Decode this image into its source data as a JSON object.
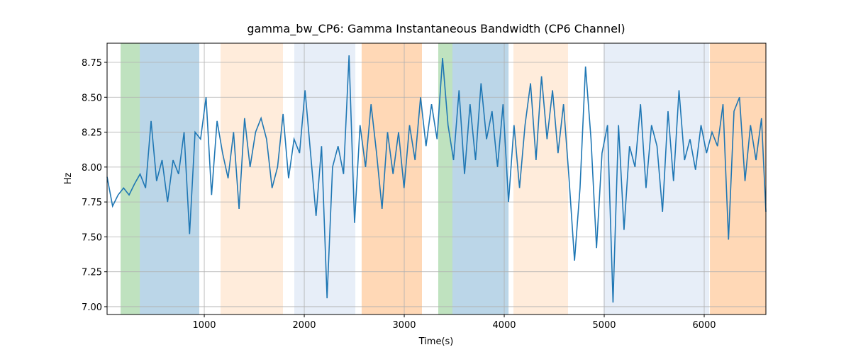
{
  "chart_data": {
    "type": "line",
    "title": "gamma_bw_CP6: Gamma Instantaneous Bandwidth (CP6 Channel)",
    "xlabel": "Time(s)",
    "ylabel": "Hz",
    "xlim": [
      28,
      6617
    ],
    "ylim": [
      6.944,
      8.887
    ],
    "xticks": [
      1000,
      2000,
      3000,
      4000,
      5000,
      6000
    ],
    "yticks": [
      {
        "value": 7,
        "label": "7.00"
      },
      {
        "value": 7.25,
        "label": "7.25"
      },
      {
        "value": 7.5,
        "label": "7.50"
      },
      {
        "value": 7.75,
        "label": "7.75"
      },
      {
        "value": 8,
        "label": "8.00"
      },
      {
        "value": 8.25,
        "label": "8.25"
      },
      {
        "value": 8.5,
        "label": "8.50"
      },
      {
        "value": 8.75,
        "label": "8.75"
      }
    ],
    "grid": true,
    "spans": [
      {
        "start": 163,
        "end": 355,
        "color": "#2ca02c",
        "alpha": 0.3
      },
      {
        "start": 355,
        "end": 950,
        "color": "#1f77b4",
        "alpha": 0.3
      },
      {
        "start": 1163,
        "end": 1787,
        "color": "#ff7f0e",
        "alpha": 0.15
      },
      {
        "start": 1900,
        "end": 2511,
        "color": "#aec7e8",
        "alpha": 0.3
      },
      {
        "start": 2574,
        "end": 3177,
        "color": "#ff7f0e",
        "alpha": 0.3
      },
      {
        "start": 3340,
        "end": 3482,
        "color": "#2ca02c",
        "alpha": 0.3
      },
      {
        "start": 3482,
        "end": 4043,
        "color": "#1f77b4",
        "alpha": 0.3
      },
      {
        "start": 4092,
        "end": 4638,
        "color": "#ff7f0e",
        "alpha": 0.15
      },
      {
        "start": 4993,
        "end": 6050,
        "color": "#aec7e8",
        "alpha": 0.3
      },
      {
        "start": 6057,
        "end": 6617,
        "color": "#ff7f0e",
        "alpha": 0.3
      }
    ],
    "x": [
      28,
      83,
      138,
      193,
      248,
      303,
      358,
      413,
      468,
      523,
      578,
      633,
      688,
      743,
      798,
      853,
      908,
      963,
      1018,
      1073,
      1128,
      1183,
      1238,
      1293,
      1348,
      1403,
      1458,
      1513,
      1568,
      1623,
      1678,
      1733,
      1788,
      1843,
      1898,
      1953,
      2008,
      2063,
      2118,
      2173,
      2228,
      2283,
      2338,
      2393,
      2448,
      2503,
      2558,
      2613,
      2668,
      2723,
      2778,
      2833,
      2888,
      2943,
      2998,
      3053,
      3108,
      3163,
      3218,
      3273,
      3328,
      3383,
      3438,
      3493,
      3548,
      3603,
      3658,
      3713,
      3768,
      3823,
      3878,
      3933,
      3988,
      4043,
      4098,
      4153,
      4208,
      4263,
      4318,
      4373,
      4428,
      4483,
      4538,
      4593,
      4648,
      4703,
      4758,
      4813,
      4868,
      4923,
      4978,
      5033,
      5088,
      5143,
      5198,
      5253,
      5308,
      5363,
      5418,
      5473,
      5528,
      5583,
      5638,
      5693,
      5748,
      5803,
      5858,
      5913,
      5968,
      6023,
      6078,
      6133,
      6188,
      6243,
      6298,
      6353,
      6408,
      6463,
      6518,
      6573,
      6617
    ],
    "series": [
      {
        "color": "#1f77b4",
        "values": [
          7.93,
          7.72,
          7.8,
          7.85,
          7.8,
          7.88,
          7.95,
          7.85,
          8.33,
          7.9,
          8.05,
          7.75,
          8.05,
          7.95,
          8.25,
          7.52,
          8.25,
          8.2,
          8.5,
          7.8,
          8.33,
          8.1,
          7.92,
          8.25,
          7.7,
          8.35,
          8.0,
          8.25,
          8.35,
          8.2,
          7.85,
          8.0,
          8.38,
          7.92,
          8.2,
          8.1,
          8.55,
          8.1,
          7.65,
          8.15,
          7.06,
          8.0,
          8.15,
          7.95,
          8.8,
          7.6,
          8.3,
          8.0,
          8.45,
          8.1,
          7.7,
          8.25,
          7.95,
          8.25,
          7.85,
          8.3,
          8.05,
          8.5,
          8.15,
          8.45,
          8.2,
          8.78,
          8.3,
          8.05,
          8.55,
          7.95,
          8.45,
          8.05,
          8.6,
          8.2,
          8.4,
          8.0,
          8.45,
          7.75,
          8.3,
          7.85,
          8.3,
          8.6,
          8.05,
          8.65,
          8.2,
          8.55,
          8.1,
          8.45,
          7.92,
          7.33,
          7.85,
          8.72,
          8.2,
          7.42,
          8.1,
          8.3,
          7.03,
          8.3,
          7.55,
          8.15,
          8.0,
          8.45,
          7.85,
          8.3,
          8.15,
          7.68,
          8.4,
          7.9,
          8.55,
          8.05,
          8.2,
          7.98,
          8.3,
          8.1,
          8.25,
          8.15,
          8.45,
          7.48,
          8.4,
          8.5,
          7.9,
          8.3,
          8.05,
          8.35,
          7.68
        ]
      }
    ]
  }
}
